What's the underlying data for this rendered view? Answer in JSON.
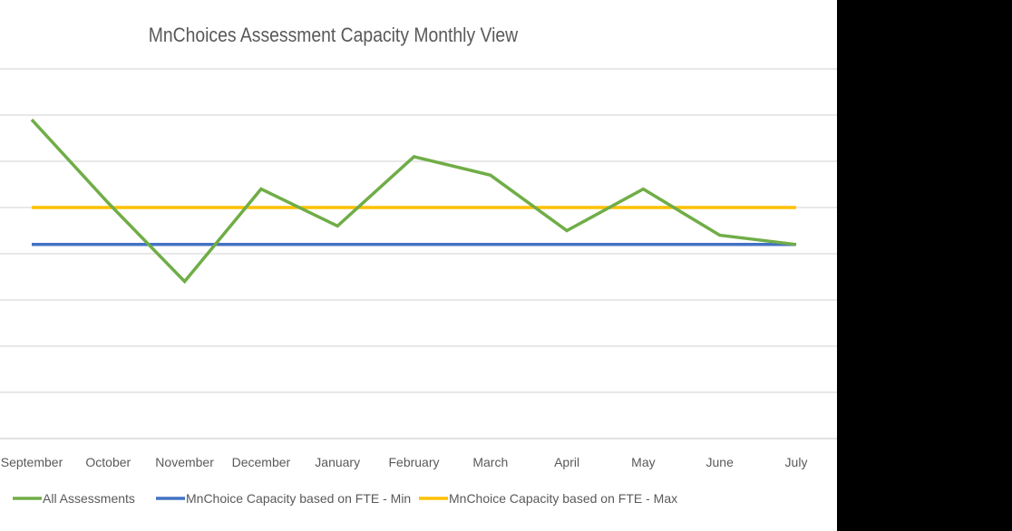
{
  "chart_data": {
    "type": "line",
    "title": "MnChoices Assessment Capacity Monthly View",
    "xlabel": "",
    "ylabel": "",
    "y_tick_labels_visible": false,
    "ylim": [
      0,
      8
    ],
    "grid": true,
    "legend_position": "bottom",
    "categories": [
      "September",
      "October",
      "November",
      "December",
      "January",
      "February",
      "March",
      "April",
      "May",
      "June",
      "July"
    ],
    "series": [
      {
        "name": "All Assessments",
        "color": "#70AD47",
        "values": [
          6.9,
          5.1,
          3.4,
          5.4,
          4.6,
          6.1,
          5.7,
          4.5,
          5.4,
          4.4,
          4.2
        ]
      },
      {
        "name": "MnChoice Capacity based on FTE - Min",
        "color": "#4472C4",
        "values": [
          4.2,
          4.2,
          4.2,
          4.2,
          4.2,
          4.2,
          4.2,
          4.2,
          4.2,
          4.2,
          4.2
        ]
      },
      {
        "name": "MnChoice Capacity based on FTE - Max",
        "color": "#FFC000",
        "values": [
          5.0,
          5.0,
          5.0,
          5.0,
          5.0,
          5.0,
          5.0,
          5.0,
          5.0,
          5.0,
          5.0
        ]
      }
    ]
  }
}
